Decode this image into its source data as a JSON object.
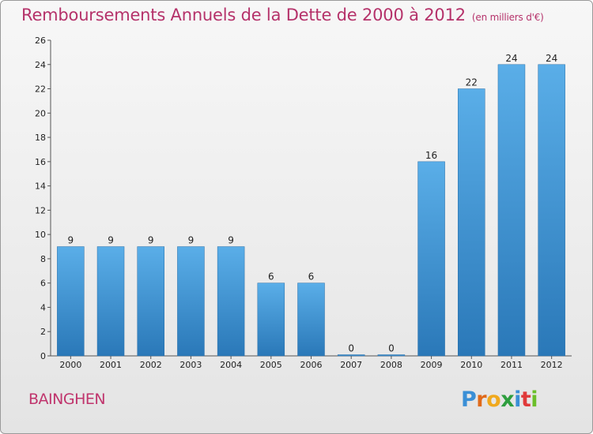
{
  "header": {
    "title": "Remboursements Annuels de la Dette de 2000 à 2012",
    "subtitle": "(en milliers d'€)"
  },
  "footer": {
    "commune": "BAINGHEN",
    "logo": "Proxiti"
  },
  "colors": {
    "title": "#b5326a",
    "bar_top": "#5aaee8",
    "bar_bottom": "#2a78b8"
  },
  "chart_data": {
    "type": "bar",
    "title": "Remboursements Annuels de la Dette de 2000 à 2012",
    "subtitle": "(en milliers d'€)",
    "xlabel": "",
    "ylabel": "",
    "categories": [
      "2000",
      "2001",
      "2002",
      "2003",
      "2004",
      "2005",
      "2006",
      "2007",
      "2008",
      "2009",
      "2010",
      "2011",
      "2012"
    ],
    "values": [
      9,
      9,
      9,
      9,
      9,
      6,
      6,
      0,
      0,
      16,
      22,
      24,
      24
    ],
    "ylim": [
      0,
      26
    ],
    "yticks": [
      0,
      2,
      4,
      6,
      8,
      10,
      12,
      14,
      16,
      18,
      20,
      22,
      24,
      26
    ],
    "grid": false,
    "legend": "none"
  }
}
